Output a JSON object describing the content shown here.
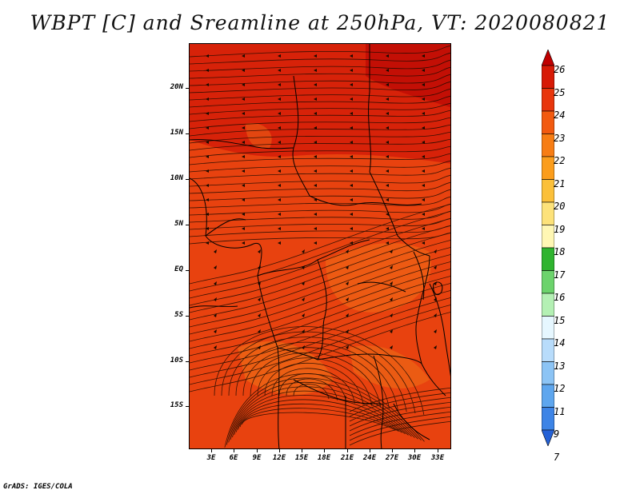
{
  "title": "WBPT [C] and Sreamline at 250hPa, VT: 2020080821",
  "credit": "GrADS: IGES/COLA",
  "lat_labels": [
    "20N",
    "15N",
    "10N",
    "5N",
    "EQ",
    "5S",
    "10S",
    "15S"
  ],
  "lon_labels": [
    "3E",
    "6E",
    "9E",
    "12E",
    "15E",
    "18E",
    "21E",
    "24E",
    "27E",
    "30E",
    "33E"
  ],
  "colorbar": {
    "levels": [
      "26",
      "25",
      "24",
      "23",
      "22",
      "21",
      "20",
      "19",
      "18",
      "17",
      "16",
      "15",
      "14",
      "13",
      "12",
      "11",
      "9",
      "7"
    ],
    "colors": [
      "#c00000",
      "#d71a06",
      "#e8360c",
      "#f25a10",
      "#f77d14",
      "#fb9d1c",
      "#fbc03a",
      "#fde27a",
      "#fff7b4",
      "#2fb42f",
      "#6cd36c",
      "#b4f0b4",
      "#e6f7ff",
      "#b8dcfb",
      "#8cc4f5",
      "#5ea6ee",
      "#3d84e6",
      "#2461d6"
    ]
  },
  "map_palette": {
    "base": "#e8420f",
    "warm": "#c80a05",
    "cool": "#f06515"
  }
}
